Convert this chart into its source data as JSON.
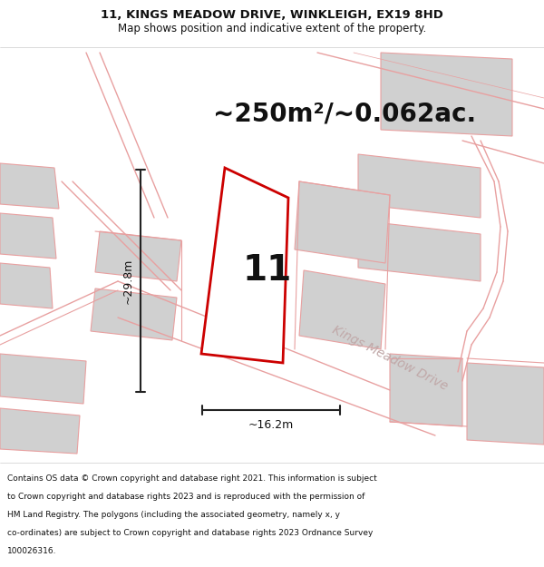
{
  "title_line1": "11, KINGS MEADOW DRIVE, WINKLEIGH, EX19 8HD",
  "title_line2": "Map shows position and indicative extent of the property.",
  "area_text": "~250m²/~0.062ac.",
  "plot_number": "11",
  "dim_height": "~29.8m",
  "dim_width": "~16.2m",
  "road_label": "Kings Meadow Drive",
  "footer_lines": [
    "Contains OS data © Crown copyright and database right 2021. This information is subject",
    "to Crown copyright and database rights 2023 and is reproduced with the permission of",
    "HM Land Registry. The polygons (including the associated geometry, namely x, y",
    "co-ordinates) are subject to Crown copyright and database rights 2023 Ordnance Survey",
    "100026316."
  ],
  "white_bg": "#ffffff",
  "plot_fill": "#ffffff",
  "plot_outline": "#cc0000",
  "map_line_color": "#e8a0a0",
  "map_fill_color": "#e8d8d8",
  "gray_fill": "#d0d0d0",
  "text_color": "#111111",
  "dim_line_color": "#222222",
  "road_text_color": "#c0a8a8",
  "title_fontsize": 9.5,
  "subtitle_fontsize": 8.5,
  "area_fontsize": 20,
  "plot_num_fontsize": 28,
  "dim_fontsize": 9,
  "road_label_fontsize": 10,
  "footer_fontsize": 6.5
}
